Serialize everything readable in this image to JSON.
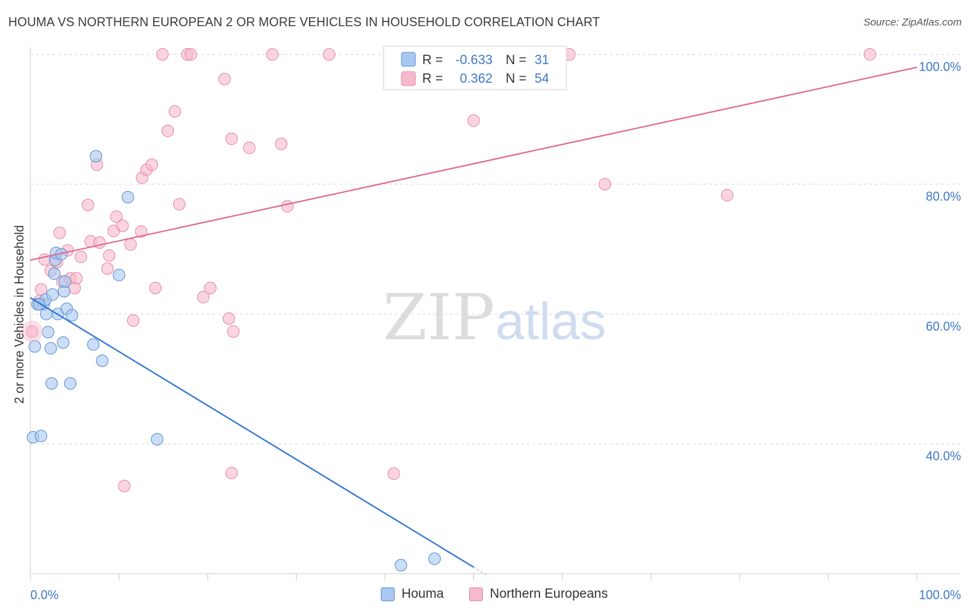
{
  "title": "HOUMA VS NORTHERN EUROPEAN 2 OR MORE VEHICLES IN HOUSEHOLD CORRELATION CHART",
  "source": "Source: ZipAtlas.com",
  "watermark": {
    "zip": "ZIP",
    "atlas": "atlas"
  },
  "colors": {
    "houma_fill": "#a9c8f0",
    "houma_stroke": "#5b8fd6",
    "houma_line": "#2f74d0",
    "ne_fill": "#f7b9cc",
    "ne_stroke": "#e58aa6",
    "ne_line": "#e06a92",
    "axis_text": "#3f78c9",
    "grid": "#d9d9d9"
  },
  "legend": {
    "rows": [
      {
        "r_label": "R =",
        "r_value": "-0.633",
        "n_label": "N =",
        "n_value": "31"
      },
      {
        "r_label": "R =",
        "r_value": "0.362",
        "n_label": "N =",
        "n_value": "54"
      }
    ]
  },
  "bottom_legend": {
    "houma": "Houma",
    "ne": "Northern Europeans"
  },
  "chart_data": {
    "type": "scatter",
    "title": "HOUMA VS NORTHERN EUROPEAN 2 OR MORE VEHICLES IN HOUSEHOLD CORRELATION CHART",
    "xlabel": "",
    "ylabel": "2 or more Vehicles in Household",
    "xlim": [
      0,
      100
    ],
    "ylim": [
      20,
      102
    ],
    "x_tick_labels": [
      "0.0%",
      "100.0%"
    ],
    "y_ticks": [
      40,
      60,
      80,
      100
    ],
    "y_tick_labels": [
      "40.0%",
      "60.0%",
      "80.0%",
      "100.0%"
    ],
    "series": [
      {
        "name": "Houma",
        "R": -0.633,
        "N": 31,
        "trend": {
          "x0": 0,
          "y0": 62.5,
          "x1": 50,
          "y1": 21
        },
        "points": [
          [
            0.3,
            41
          ],
          [
            1.2,
            41.2
          ],
          [
            0.5,
            55
          ],
          [
            1.5,
            61.5
          ],
          [
            0.8,
            61.5
          ],
          [
            1.8,
            60
          ],
          [
            1.7,
            62.2
          ],
          [
            2.0,
            57.2
          ],
          [
            2.3,
            54.7
          ],
          [
            2.4,
            49.3
          ],
          [
            2.5,
            63
          ],
          [
            2.7,
            66.2
          ],
          [
            2.8,
            68.3
          ],
          [
            2.9,
            69.4
          ],
          [
            3.1,
            60
          ],
          [
            3.5,
            69.2
          ],
          [
            3.8,
            63.5
          ],
          [
            3.9,
            65
          ],
          [
            4.1,
            60.8
          ],
          [
            4.7,
            59.8
          ],
          [
            4.5,
            49.3
          ],
          [
            3.7,
            55.6
          ],
          [
            7.1,
            55.3
          ],
          [
            7.4,
            84.3
          ],
          [
            8.1,
            52.8
          ],
          [
            10.0,
            66
          ],
          [
            11.0,
            78
          ],
          [
            14.3,
            40.7
          ],
          [
            41.8,
            21.3
          ],
          [
            45.6,
            22.3
          ],
          [
            1.0,
            61.5
          ]
        ]
      },
      {
        "name": "Northern Europeans",
        "R": 0.362,
        "N": 54,
        "trend": {
          "x0": 0,
          "y0": 68.3,
          "x1": 100,
          "y1": 98
        },
        "points": [
          [
            0.2,
            57.3
          ],
          [
            1.0,
            62
          ],
          [
            1.2,
            63.8
          ],
          [
            1.6,
            68.4
          ],
          [
            2.3,
            66.7
          ],
          [
            3.3,
            72.5
          ],
          [
            3.0,
            68
          ],
          [
            3.6,
            65
          ],
          [
            4.5,
            65.5
          ],
          [
            4.2,
            69.8
          ],
          [
            5.0,
            64
          ],
          [
            5.2,
            65.5
          ],
          [
            5.7,
            68.8
          ],
          [
            6.5,
            76.8
          ],
          [
            6.8,
            71.2
          ],
          [
            7.5,
            83
          ],
          [
            7.8,
            71
          ],
          [
            8.7,
            67
          ],
          [
            8.9,
            69
          ],
          [
            9.4,
            72.8
          ],
          [
            9.7,
            75
          ],
          [
            10.4,
            73.6
          ],
          [
            11.3,
            70.7
          ],
          [
            11.6,
            59
          ],
          [
            12.5,
            72.7
          ],
          [
            12.6,
            81
          ],
          [
            13.1,
            82.2
          ],
          [
            13.7,
            83
          ],
          [
            14.1,
            64
          ],
          [
            15.5,
            88.2
          ],
          [
            16.3,
            91.2
          ],
          [
            16.8,
            76.9
          ],
          [
            17.7,
            100
          ],
          [
            18.1,
            100
          ],
          [
            19.5,
            62.6
          ],
          [
            20.3,
            64
          ],
          [
            21.9,
            96.2
          ],
          [
            22.4,
            59.3
          ],
          [
            22.7,
            87
          ],
          [
            22.9,
            57.3
          ],
          [
            24.7,
            85.6
          ],
          [
            27.3,
            100
          ],
          [
            28.3,
            86.2
          ],
          [
            29.0,
            76.6
          ],
          [
            33.7,
            100
          ],
          [
            41.0,
            35.4
          ],
          [
            50.0,
            89.8
          ],
          [
            60.8,
            100
          ],
          [
            64.8,
            80
          ],
          [
            78.6,
            78.3
          ],
          [
            94.7,
            100
          ],
          [
            10.6,
            33.5
          ],
          [
            22.7,
            35.5
          ],
          [
            14.9,
            100
          ]
        ]
      }
    ]
  }
}
